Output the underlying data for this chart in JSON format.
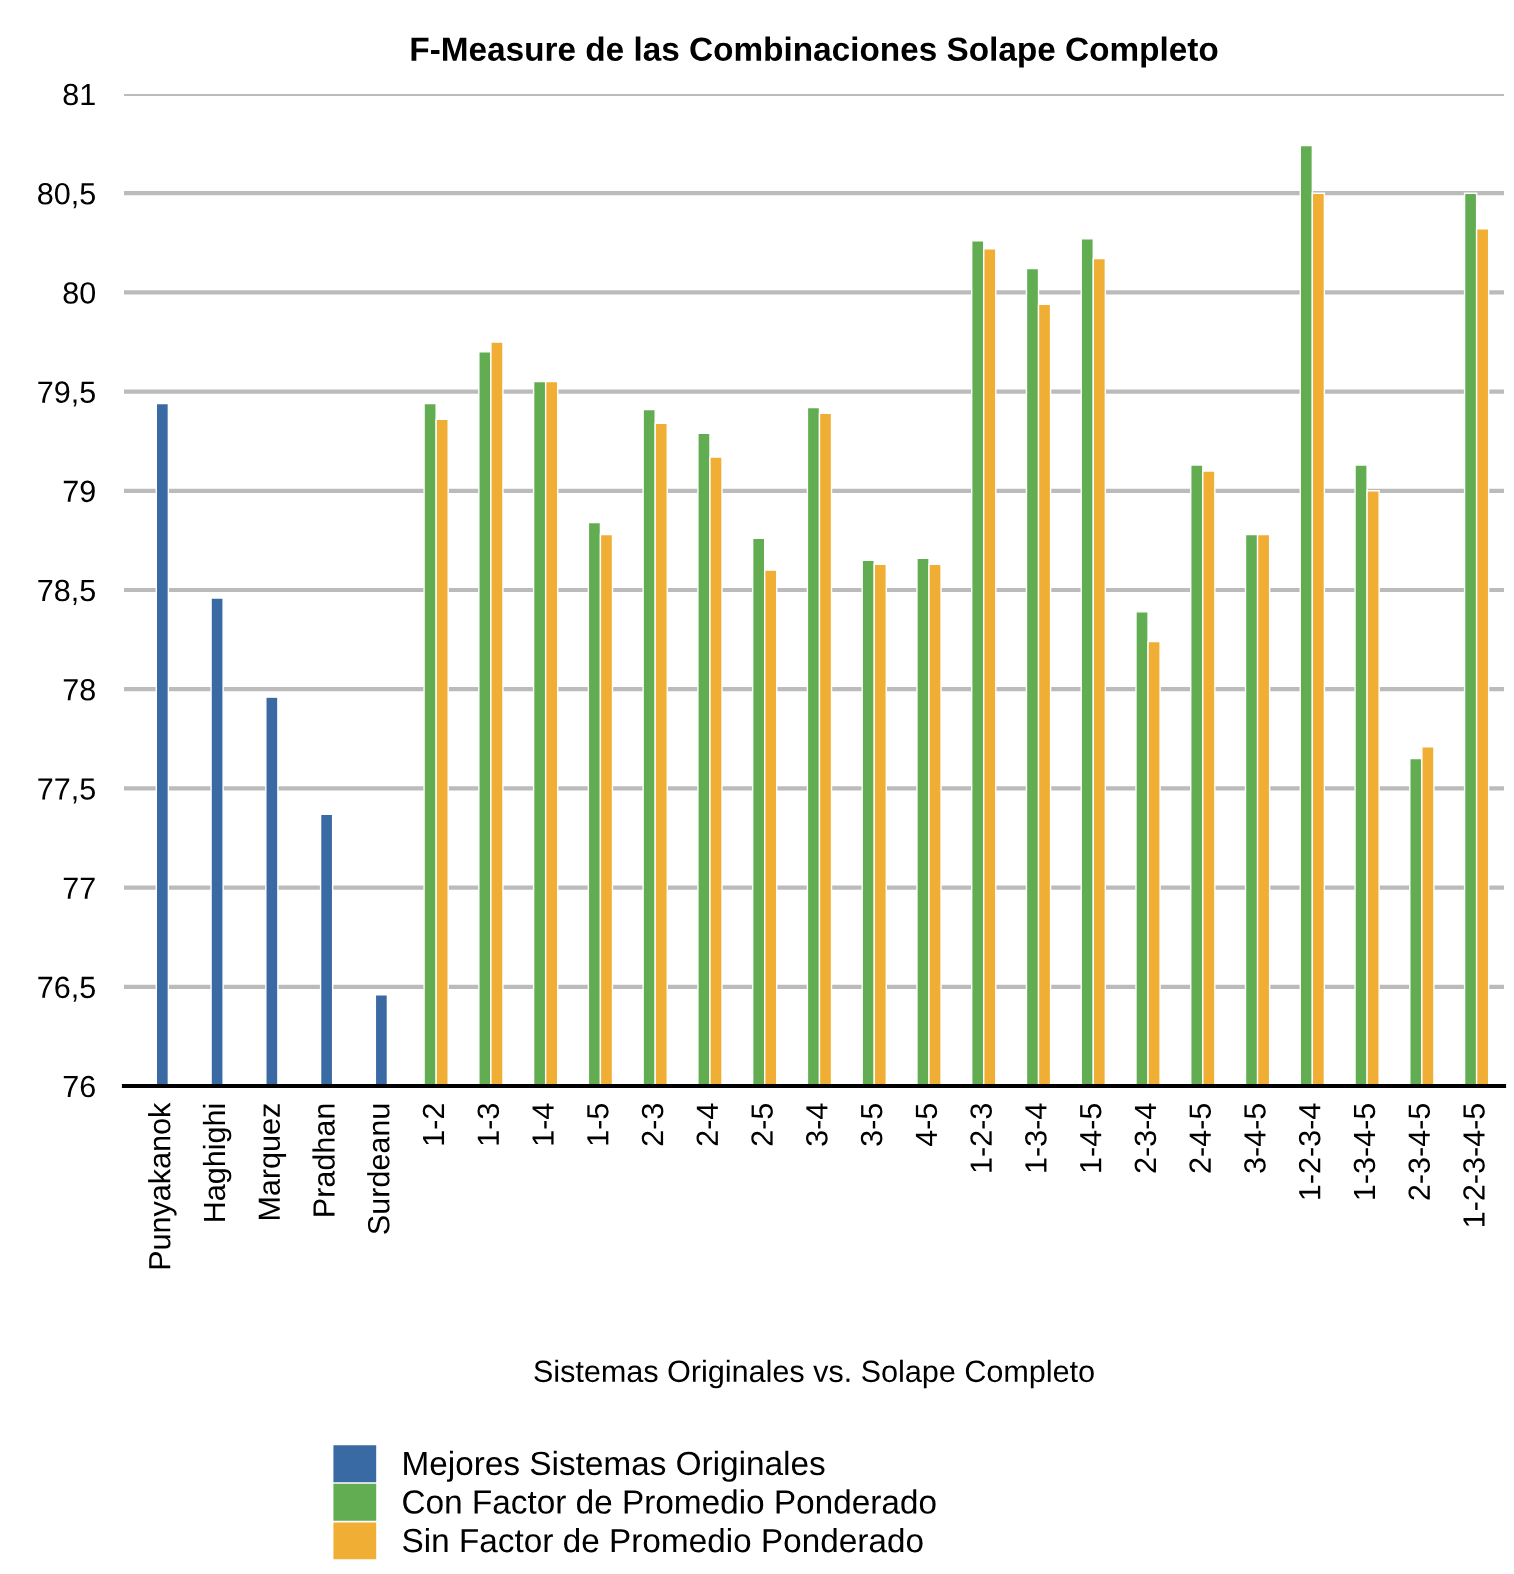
{
  "chart_data": {
    "type": "bar",
    "title": "F-Measure de las Combinaciones Solape Completo",
    "xlabel": "Sistemas Originales vs. Solape Completo",
    "categories": [
      "Punyakanok",
      "Haghighi",
      "Marquez",
      "Pradhan",
      "Surdeanu",
      "1-2",
      "1-3",
      "1-4",
      "1-5",
      "2-3",
      "2-4",
      "2-5",
      "3-4",
      "3-5",
      "4-5",
      "1-2-3",
      "1-3-4",
      "1-4-5",
      "2-3-4",
      "2-4-5",
      "3-4-5",
      "1-2-3-4",
      "1-3-4-5",
      "2-3-4-5",
      "1-2-3-4-5"
    ],
    "series": [
      {
        "name": "Mejores Sistemas Originales",
        "color": "#3a6aa3",
        "values": [
          79.44,
          78.46,
          77.96,
          77.37,
          76.46,
          null,
          null,
          null,
          null,
          null,
          null,
          null,
          null,
          null,
          null,
          null,
          null,
          null,
          null,
          null,
          null,
          null,
          null,
          null,
          null
        ]
      },
      {
        "name": "Con Factor de Promedio Ponderado",
        "color": "#62ad52",
        "values": [
          null,
          null,
          null,
          null,
          null,
          79.44,
          79.7,
          79.55,
          78.84,
          79.41,
          79.29,
          78.76,
          79.42,
          78.65,
          78.66,
          80.26,
          80.12,
          80.27,
          78.39,
          79.13,
          78.78,
          80.74,
          79.13,
          77.65,
          80.5
        ]
      },
      {
        "name": "Sin Factor de Promedio Ponderado",
        "color": "#f1ae35",
        "values": [
          null,
          null,
          null,
          null,
          null,
          79.36,
          79.75,
          79.55,
          78.78,
          79.34,
          79.17,
          78.6,
          79.39,
          78.63,
          78.63,
          80.22,
          79.94,
          80.17,
          78.24,
          79.1,
          78.78,
          80.5,
          79.0,
          77.71,
          80.32
        ]
      }
    ],
    "ylim": [
      76,
      81
    ],
    "yticks": [
      76,
      {
        "value": 76.5,
        "label": "76,5"
      },
      77,
      {
        "value": 77.5,
        "label": "77,5"
      },
      78,
      {
        "value": 78.5,
        "label": "78,5"
      },
      79,
      {
        "value": 79.5,
        "label": "79,5"
      },
      80,
      {
        "value": 80.5,
        "label": "80,5"
      },
      81
    ],
    "grid": "y",
    "legend": "bottom"
  }
}
